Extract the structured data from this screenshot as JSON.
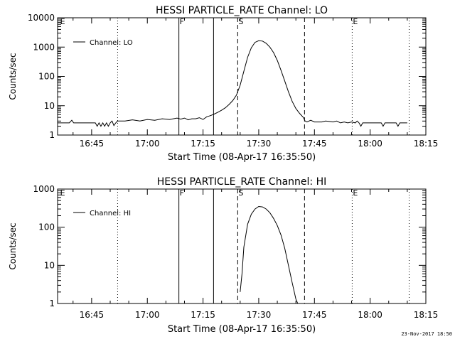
{
  "footer_timestamp": "23-Nov-2017 18:50",
  "colors": {
    "background": "#ffffff",
    "foreground": "#000000"
  },
  "chart_data": [
    {
      "type": "line",
      "title": "HESSI PARTICLE_RATE Channel: LO",
      "xlabel": "Start Time (08-Apr-17 16:35:50)",
      "ylabel": "Counts/sec",
      "y_scale": "log",
      "ylim": [
        1,
        10000
      ],
      "y_ticks": [
        1,
        10,
        100,
        1000,
        10000
      ],
      "y_tick_labels": [
        "1",
        "10",
        "100",
        "1000",
        "10000"
      ],
      "xlim": [
        "16:35:50",
        "18:15:00"
      ],
      "x_ticks": [
        "16:45",
        "17:00",
        "17:15",
        "17:30",
        "17:45",
        "18:00",
        "18:15"
      ],
      "grid": false,
      "legend": {
        "position": "top-left",
        "entries": [
          "Channel: LO"
        ]
      },
      "event_markers": [
        {
          "time": "16:52:00",
          "style": "dotted",
          "label": ""
        },
        {
          "time": "17:08:30",
          "style": "solid",
          "label": "F"
        },
        {
          "time": "17:17:50",
          "style": "solid",
          "label": ""
        },
        {
          "time": "17:24:20",
          "style": "dashed",
          "label": "S"
        },
        {
          "time": "17:42:20",
          "style": "dashed",
          "label": ""
        },
        {
          "time": "17:55:10",
          "style": "dotted",
          "label": "E"
        },
        {
          "time": "18:10:30",
          "style": "dotted",
          "label": ""
        },
        {
          "time": "16:36:20",
          "style": "none",
          "label": "E"
        }
      ],
      "series": [
        {
          "name": "Channel: LO",
          "x": [
            "16:35:50",
            "16:38:00",
            "16:39:00",
            "16:39:40",
            "16:40:10",
            "16:42:00",
            "16:46:00",
            "16:46:30",
            "16:47:00",
            "16:47:30",
            "16:48:00",
            "16:48:30",
            "16:49:00",
            "16:49:30",
            "16:50:00",
            "16:50:30",
            "16:51:00",
            "16:51:30",
            "16:52:00",
            "16:54:00",
            "16:56:00",
            "16:58:00",
            "17:00:00",
            "17:02:00",
            "17:04:00",
            "17:06:00",
            "17:08:00",
            "17:09:00",
            "17:10:00",
            "17:11:00",
            "17:12:00",
            "17:13:00",
            "17:14:00",
            "17:15:00",
            "17:16:00",
            "17:17:00",
            "17:18:00",
            "17:19:00",
            "17:20:00",
            "17:21:00",
            "17:22:00",
            "17:23:00",
            "17:24:00",
            "17:25:00",
            "17:26:00",
            "17:27:00",
            "17:28:00",
            "17:29:00",
            "17:30:00",
            "17:31:00",
            "17:32:00",
            "17:33:00",
            "17:34:00",
            "17:35:00",
            "17:36:00",
            "17:37:00",
            "17:38:00",
            "17:39:00",
            "17:40:00",
            "17:41:00",
            "17:42:00",
            "17:42:30",
            "17:43:00",
            "17:44:00",
            "17:45:00",
            "17:46:00",
            "17:47:00",
            "17:48:00",
            "17:49:00",
            "17:50:00",
            "17:51:00",
            "17:52:00",
            "17:53:00",
            "17:54:00",
            "17:55:00",
            "17:56:00",
            "17:56:30",
            "17:57:00",
            "17:57:30",
            "17:58:00",
            "17:59:00",
            "18:00:00",
            "18:01:00",
            "18:02:00",
            "18:03:00",
            "18:03:30",
            "18:04:00",
            "18:05:00",
            "18:06:00",
            "18:07:00",
            "18:07:30",
            "18:08:00",
            "18:09:00",
            "18:10:00"
          ],
          "values": [
            2.6,
            2.6,
            2.6,
            3.2,
            2.6,
            2.6,
            2.6,
            2.0,
            2.6,
            2.0,
            2.6,
            2.0,
            2.6,
            2.0,
            2.6,
            3.0,
            2.1,
            2.6,
            3.0,
            3.0,
            3.3,
            3.0,
            3.4,
            3.2,
            3.6,
            3.4,
            3.8,
            3.5,
            3.8,
            3.3,
            3.6,
            3.6,
            3.9,
            3.4,
            4.2,
            4.6,
            5.2,
            6.0,
            7.0,
            8.5,
            11,
            15,
            23,
            50,
            150,
            450,
            950,
            1450,
            1650,
            1600,
            1350,
            1000,
            650,
            350,
            160,
            70,
            30,
            14,
            8,
            5.5,
            4.0,
            3.0,
            2.8,
            3.2,
            2.8,
            2.8,
            2.8,
            3.0,
            2.9,
            2.8,
            3.0,
            2.6,
            2.8,
            2.6,
            2.8,
            2.6,
            3.0,
            2.6,
            2.0,
            2.6,
            2.6,
            2.6,
            2.6,
            2.6,
            2.6,
            2.0,
            2.6,
            2.6,
            2.6,
            2.6,
            2.0,
            2.6,
            2.6,
            2.6
          ]
        }
      ]
    },
    {
      "type": "line",
      "title": "HESSI PARTICLE_RATE Channel: HI",
      "xlabel": "Start Time (08-Apr-17 16:35:50)",
      "ylabel": "Counts/sec",
      "y_scale": "log",
      "ylim": [
        1,
        1000
      ],
      "y_ticks": [
        1,
        10,
        100,
        1000
      ],
      "y_tick_labels": [
        "1",
        "10",
        "100",
        "1000"
      ],
      "xlim": [
        "16:35:50",
        "18:15:00"
      ],
      "x_ticks": [
        "16:45",
        "17:00",
        "17:15",
        "17:30",
        "17:45",
        "18:00",
        "18:15"
      ],
      "grid": false,
      "legend": {
        "position": "top-left",
        "entries": [
          "Channel: HI"
        ]
      },
      "event_markers": [
        {
          "time": "16:52:00",
          "style": "dotted",
          "label": ""
        },
        {
          "time": "17:08:30",
          "style": "solid",
          "label": "F"
        },
        {
          "time": "17:17:50",
          "style": "solid",
          "label": ""
        },
        {
          "time": "17:24:20",
          "style": "dashed",
          "label": "S"
        },
        {
          "time": "17:42:20",
          "style": "dashed",
          "label": ""
        },
        {
          "time": "17:55:10",
          "style": "dotted",
          "label": "E"
        },
        {
          "time": "18:10:30",
          "style": "dotted",
          "label": ""
        },
        {
          "time": "16:36:20",
          "style": "none",
          "label": "E"
        }
      ],
      "series": [
        {
          "name": "Channel: HI",
          "x": [
            "17:25:00",
            "17:25:30",
            "17:26:00",
            "17:27:00",
            "17:28:00",
            "17:29:00",
            "17:30:00",
            "17:31:00",
            "17:32:00",
            "17:33:00",
            "17:34:00",
            "17:35:00",
            "17:36:00",
            "17:37:00",
            "17:38:00",
            "17:39:00",
            "17:40:00",
            "17:40:30"
          ],
          "values": [
            2.0,
            6,
            30,
            120,
            220,
            300,
            350,
            340,
            300,
            240,
            170,
            110,
            62,
            28,
            10,
            3.5,
            1.3,
            1.0
          ]
        }
      ]
    }
  ]
}
